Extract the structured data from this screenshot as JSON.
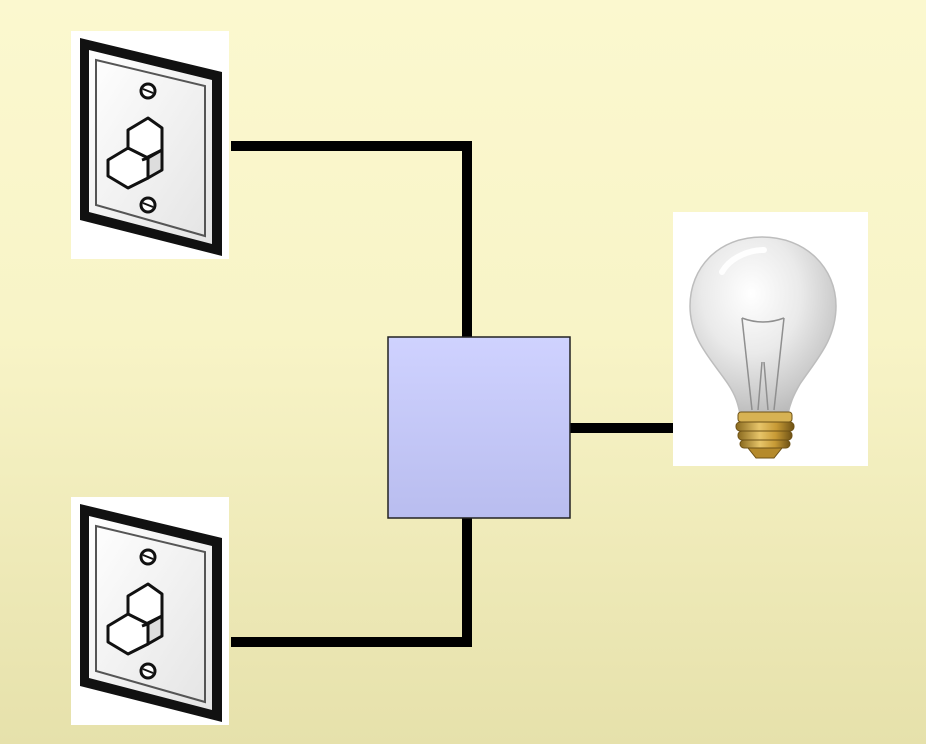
{
  "diagram": {
    "components": [
      {
        "id": "switch-1",
        "kind": "toggle-switch",
        "icon": "light-switch-icon"
      },
      {
        "id": "switch-2",
        "kind": "toggle-switch",
        "icon": "light-switch-icon"
      },
      {
        "id": "junction",
        "kind": "box",
        "icon": "junction-box"
      },
      {
        "id": "bulb",
        "kind": "light-bulb",
        "icon": "light-bulb-icon"
      }
    ],
    "connections": [
      {
        "from": "switch-1",
        "to": "junction"
      },
      {
        "from": "switch-2",
        "to": "junction"
      },
      {
        "from": "junction",
        "to": "bulb"
      }
    ],
    "colors": {
      "background_top": "#fbf8cf",
      "background_bottom": "#e6e1ab",
      "wire": "#000000",
      "junction_fill": "#c9ccf7",
      "switch_plate": "#f2f2f2",
      "bulb_base": "#c9a24a"
    }
  }
}
